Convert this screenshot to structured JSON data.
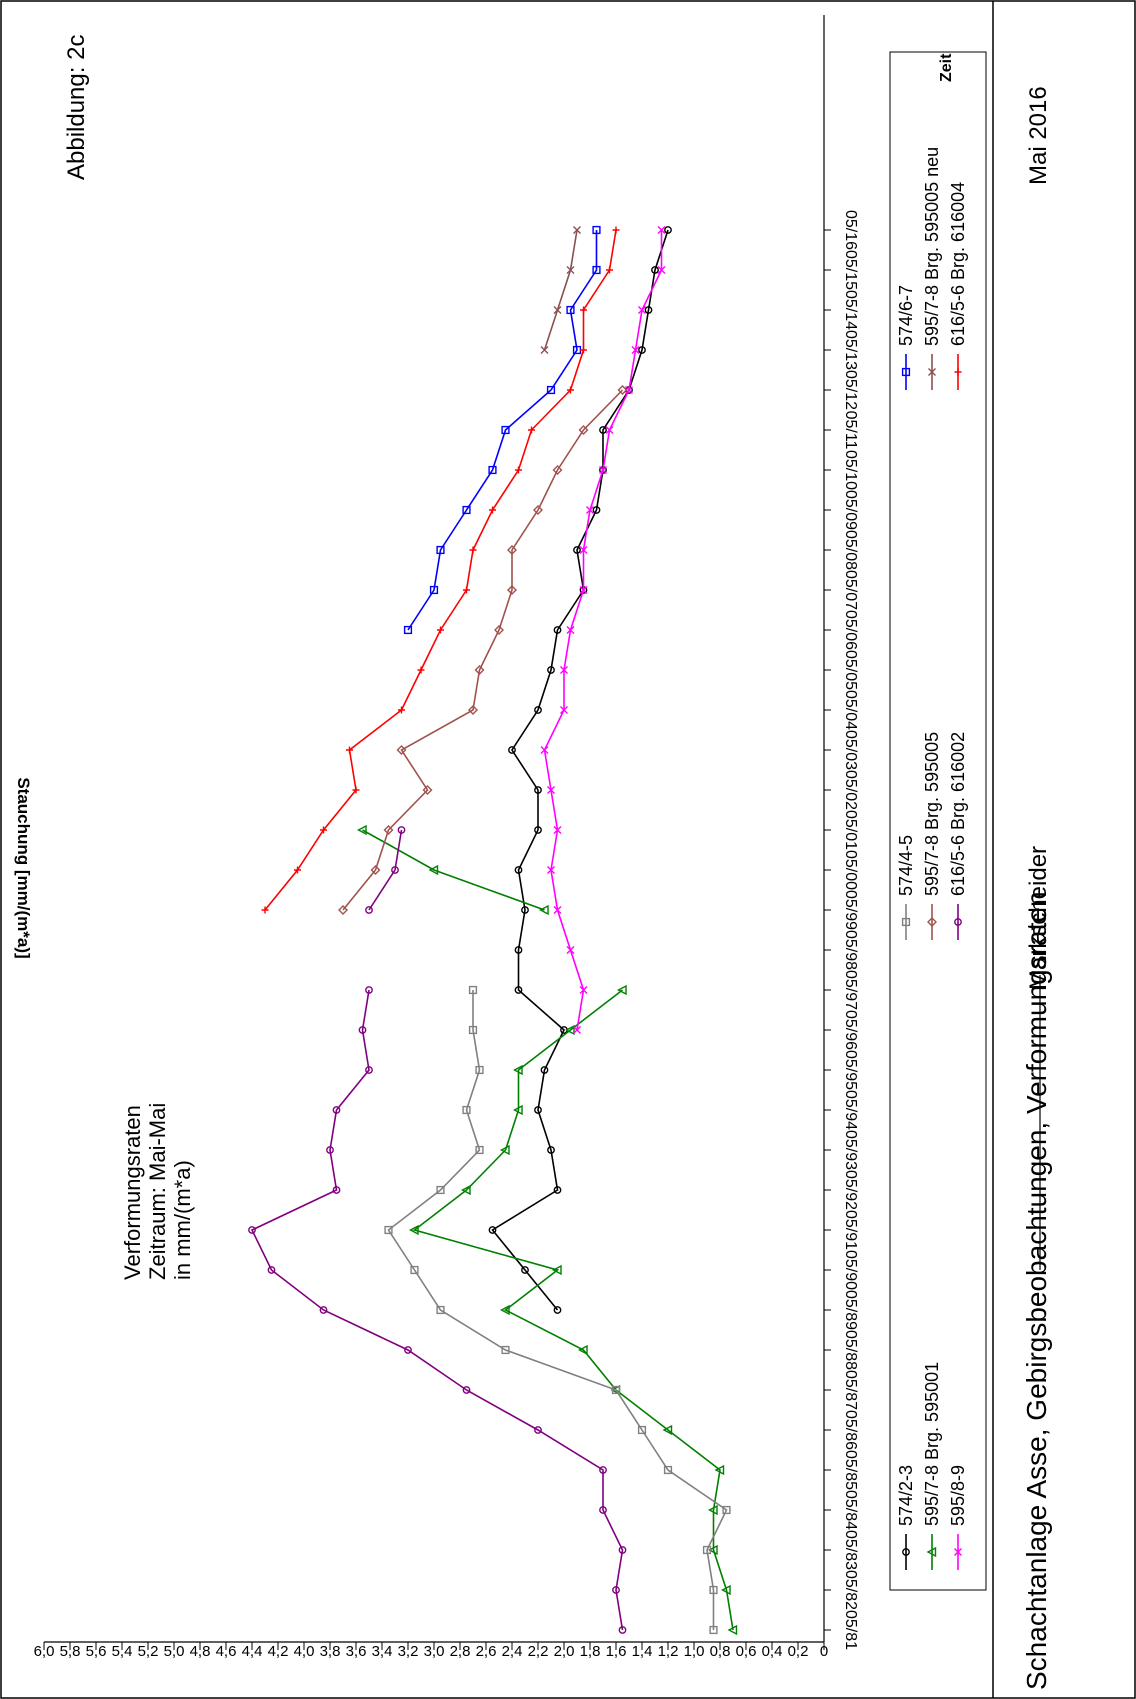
{
  "page": {
    "title": "Schachtanlage Asse, Gebirgsbeobachtungen, Verformungsraten",
    "signature_label": "Markscheider",
    "date": "Mai 2016"
  },
  "chart_data": {
    "type": "line",
    "title": "Abbildung:  2c",
    "annotation": [
      "Verformungsraten",
      "Zeitraum: Mai-Mai",
      "in mm/(m*a)"
    ],
    "xlabel": "Zeit",
    "ylabel": "Stauchung [mm/(m*a)]",
    "orientation": "rotated 90° clockwise",
    "ylim": [
      0,
      6.0
    ],
    "yticks": [
      "0",
      "0,2",
      "0,4",
      "0,6",
      "0,8",
      "1,0",
      "1,2",
      "1,4",
      "1,6",
      "1,8",
      "2,0",
      "2,2",
      "2,4",
      "2,6",
      "2,8",
      "3,0",
      "3,2",
      "3,4",
      "3,6",
      "3,8",
      "4,0",
      "4,2",
      "4,4",
      "4,6",
      "4,8",
      "5,0",
      "5,2",
      "5,4",
      "5,6",
      "5,8",
      "6,0"
    ],
    "categories": [
      "05/81",
      "05/82",
      "05/83",
      "05/84",
      "05/85",
      "05/86",
      "05/87",
      "05/88",
      "05/89",
      "05/90",
      "05/91",
      "05/92",
      "05/93",
      "05/94",
      "05/95",
      "05/96",
      "05/97",
      "05/98",
      "05/99",
      "05/00",
      "05/01",
      "05/02",
      "05/03",
      "05/04",
      "05/05",
      "05/06",
      "05/07",
      "05/08",
      "05/09",
      "05/10",
      "05/11",
      "05/12",
      "05/13",
      "05/14",
      "05/15",
      "05/16"
    ],
    "grid": false,
    "legend_position": "bottom",
    "series": [
      {
        "name": "574/2-3",
        "color": "#000000",
        "marker": "circle",
        "values": [
          null,
          null,
          null,
          null,
          null,
          null,
          null,
          null,
          2.05,
          2.3,
          2.55,
          2.05,
          2.1,
          2.2,
          2.15,
          2.0,
          2.35,
          2.35,
          2.3,
          2.35,
          2.2,
          2.2,
          2.4,
          2.2,
          2.1,
          2.05,
          1.85,
          1.9,
          1.75,
          1.7,
          1.7,
          1.5,
          1.4,
          1.35,
          1.3,
          1.2
        ]
      },
      {
        "name": "595/7-8 Brg. 595001",
        "color": "#008000",
        "marker": "triangle",
        "values": [
          0.7,
          0.75,
          0.85,
          0.85,
          0.8,
          1.2,
          1.6,
          1.85,
          2.45,
          2.05,
          3.15,
          2.75,
          2.45,
          2.35,
          2.35,
          1.95,
          1.55,
          null,
          2.15,
          3.0,
          3.55,
          null,
          null,
          null,
          null,
          null,
          null,
          null,
          null,
          null,
          null,
          null,
          null,
          null,
          null,
          null
        ]
      },
      {
        "name": "595/8-9",
        "color": "#ff00ff",
        "marker": "x",
        "values": [
          null,
          null,
          null,
          null,
          null,
          null,
          null,
          null,
          null,
          null,
          null,
          null,
          null,
          null,
          null,
          1.9,
          1.85,
          1.95,
          2.05,
          2.1,
          2.05,
          2.1,
          2.15,
          2.0,
          2.0,
          1.95,
          1.85,
          1.85,
          1.8,
          1.7,
          1.65,
          1.5,
          1.45,
          1.4,
          1.25,
          1.25
        ]
      },
      {
        "name": "574/4-5",
        "color": "#808080",
        "marker": "square",
        "values": [
          0.85,
          0.85,
          0.9,
          0.75,
          1.2,
          1.4,
          1.6,
          2.45,
          2.95,
          3.15,
          3.35,
          2.95,
          2.65,
          2.75,
          2.65,
          2.7,
          2.7,
          null,
          null,
          null,
          null,
          null,
          null,
          null,
          null,
          null,
          null,
          null,
          null,
          null,
          null,
          null,
          null,
          null,
          null,
          null
        ]
      },
      {
        "name": "595/7-8 Brg. 595005",
        "color": "#a0524d",
        "marker": "diamond",
        "values": [
          null,
          null,
          null,
          null,
          null,
          null,
          null,
          null,
          null,
          null,
          null,
          null,
          null,
          null,
          null,
          null,
          null,
          null,
          3.7,
          3.45,
          3.35,
          3.05,
          3.25,
          2.7,
          2.65,
          2.5,
          2.4,
          2.4,
          2.2,
          2.05,
          1.85,
          1.55,
          null,
          null,
          null,
          null
        ]
      },
      {
        "name": "616/5-6 Brg. 616002",
        "color": "#800080",
        "marker": "circle",
        "values": [
          1.55,
          1.6,
          1.55,
          1.7,
          1.7,
          2.2,
          2.75,
          3.2,
          3.85,
          4.25,
          4.4,
          3.75,
          3.8,
          3.75,
          3.5,
          3.55,
          3.5,
          null,
          3.5,
          3.3,
          3.25,
          null,
          null,
          null,
          null,
          null,
          null,
          null,
          null,
          null,
          null,
          null,
          null,
          null,
          null,
          null
        ]
      },
      {
        "name": "574/6-7",
        "color": "#0000ff",
        "marker": "square",
        "values": [
          null,
          null,
          null,
          null,
          null,
          null,
          null,
          null,
          null,
          null,
          null,
          null,
          null,
          null,
          null,
          null,
          null,
          null,
          null,
          null,
          null,
          null,
          null,
          null,
          null,
          3.2,
          3.0,
          2.95,
          2.75,
          2.55,
          2.45,
          2.1,
          1.9,
          1.95,
          1.75,
          1.75
        ]
      },
      {
        "name": "595/7-8 Brg. 595005 neu",
        "color": "#8b5050",
        "marker": "x",
        "values": [
          null,
          null,
          null,
          null,
          null,
          null,
          null,
          null,
          null,
          null,
          null,
          null,
          null,
          null,
          null,
          null,
          null,
          null,
          null,
          null,
          null,
          null,
          null,
          null,
          null,
          null,
          null,
          null,
          null,
          null,
          null,
          null,
          2.15,
          2.05,
          1.95,
          1.9
        ]
      },
      {
        "name": "616/5-6 Brg. 616004",
        "color": "#ff0000",
        "marker": "plus",
        "values": [
          null,
          null,
          null,
          null,
          null,
          null,
          null,
          null,
          null,
          null,
          null,
          null,
          null,
          null,
          null,
          null,
          null,
          null,
          4.3,
          4.05,
          3.85,
          3.6,
          3.65,
          3.25,
          3.1,
          2.95,
          2.75,
          2.7,
          2.55,
          2.35,
          2.25,
          1.95,
          1.85,
          1.85,
          1.65,
          1.6
        ]
      }
    ]
  }
}
